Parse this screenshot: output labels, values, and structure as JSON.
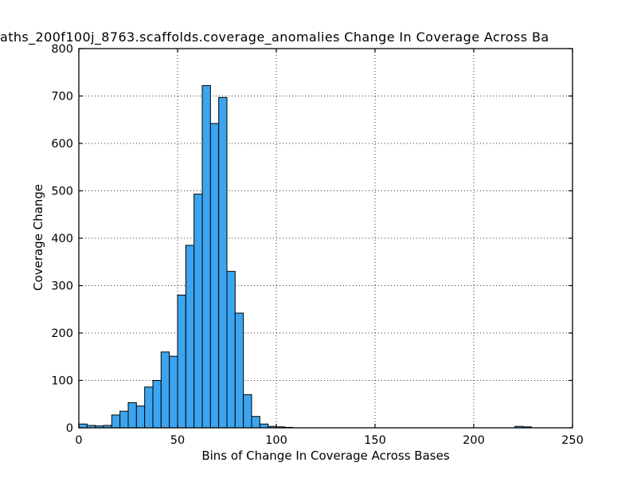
{
  "title": "aths_200f100j_8763.scaffolds.coverage_anomalies Change In Coverage Across Ba",
  "chart_data": {
    "type": "bar",
    "subtype": "histogram",
    "title": "aths_200f100j_8763.scaffolds.coverage_anomalies Change In Coverage Across Ba",
    "xlabel": "Bins of Change In Coverage Across Bases",
    "ylabel": "Coverage Change",
    "xlim": [
      0,
      250
    ],
    "ylim": [
      0,
      800
    ],
    "x_ticks": [
      0,
      50,
      100,
      150,
      200,
      250
    ],
    "y_ticks": [
      0,
      100,
      200,
      300,
      400,
      500,
      600,
      700,
      800
    ],
    "grid": "dotted both axes",
    "legend": "none",
    "bar_color": "#3da5f0",
    "bar_edge_color": "#000000",
    "bin_start": 0,
    "bin_width": 4.1667,
    "values": [
      8,
      5,
      4,
      5,
      27,
      35,
      53,
      46,
      86,
      100,
      160,
      151,
      280,
      385,
      493,
      722,
      642,
      697,
      330,
      242,
      70,
      24,
      8,
      3,
      2,
      1,
      0,
      0,
      0,
      0,
      0,
      0,
      0,
      0,
      0,
      0,
      0,
      0,
      0,
      0,
      0,
      0,
      0,
      0,
      0,
      0,
      0,
      0,
      0,
      0,
      0,
      0,
      0,
      3,
      2,
      0,
      0,
      0,
      0,
      0
    ]
  }
}
